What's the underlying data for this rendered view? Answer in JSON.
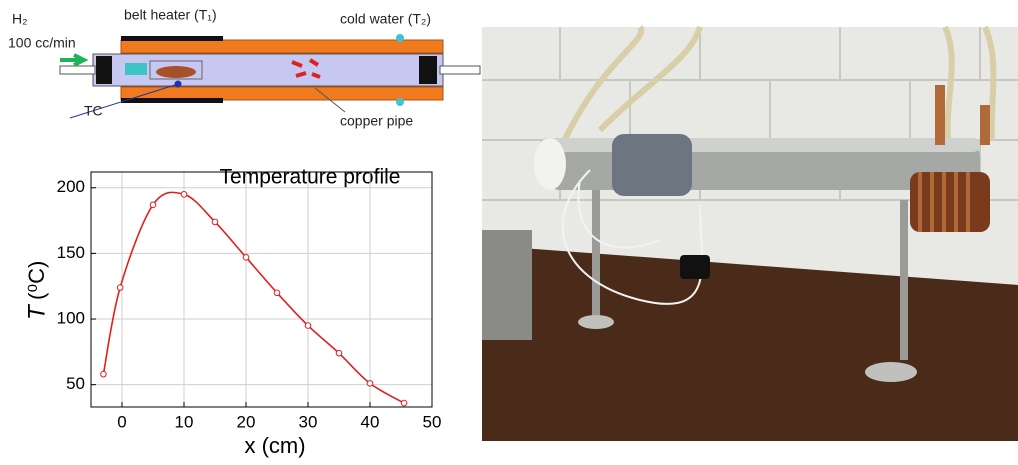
{
  "diagram": {
    "labels": {
      "gas": "H₂",
      "flow": "100 cc/min",
      "heater": "belt heater (T₁)",
      "water": "cold water (T₂)",
      "thermocouple": "TC",
      "pipe": "copper pipe"
    }
  },
  "chart_data": {
    "type": "line",
    "title": "Temperature profile",
    "xlabel": "x (cm)",
    "ylabel_symbol": "T",
    "ylabel_unit": "(⁰C)",
    "x": [
      -3,
      -0.3,
      5,
      10,
      15,
      20,
      25,
      30,
      35,
      40,
      45.5
    ],
    "series": [
      {
        "color": "#e02020",
        "values": [
          58,
          124,
          187,
          195,
          174,
          147,
          120,
          95,
          74,
          51,
          36
        ]
      }
    ],
    "xlim": [
      -5,
      50
    ],
    "xticks": [
      0,
      10,
      20,
      30,
      40,
      50
    ],
    "ylim": [
      33,
      212
    ],
    "yticks": [
      50,
      100,
      150,
      200
    ],
    "grid": true
  }
}
